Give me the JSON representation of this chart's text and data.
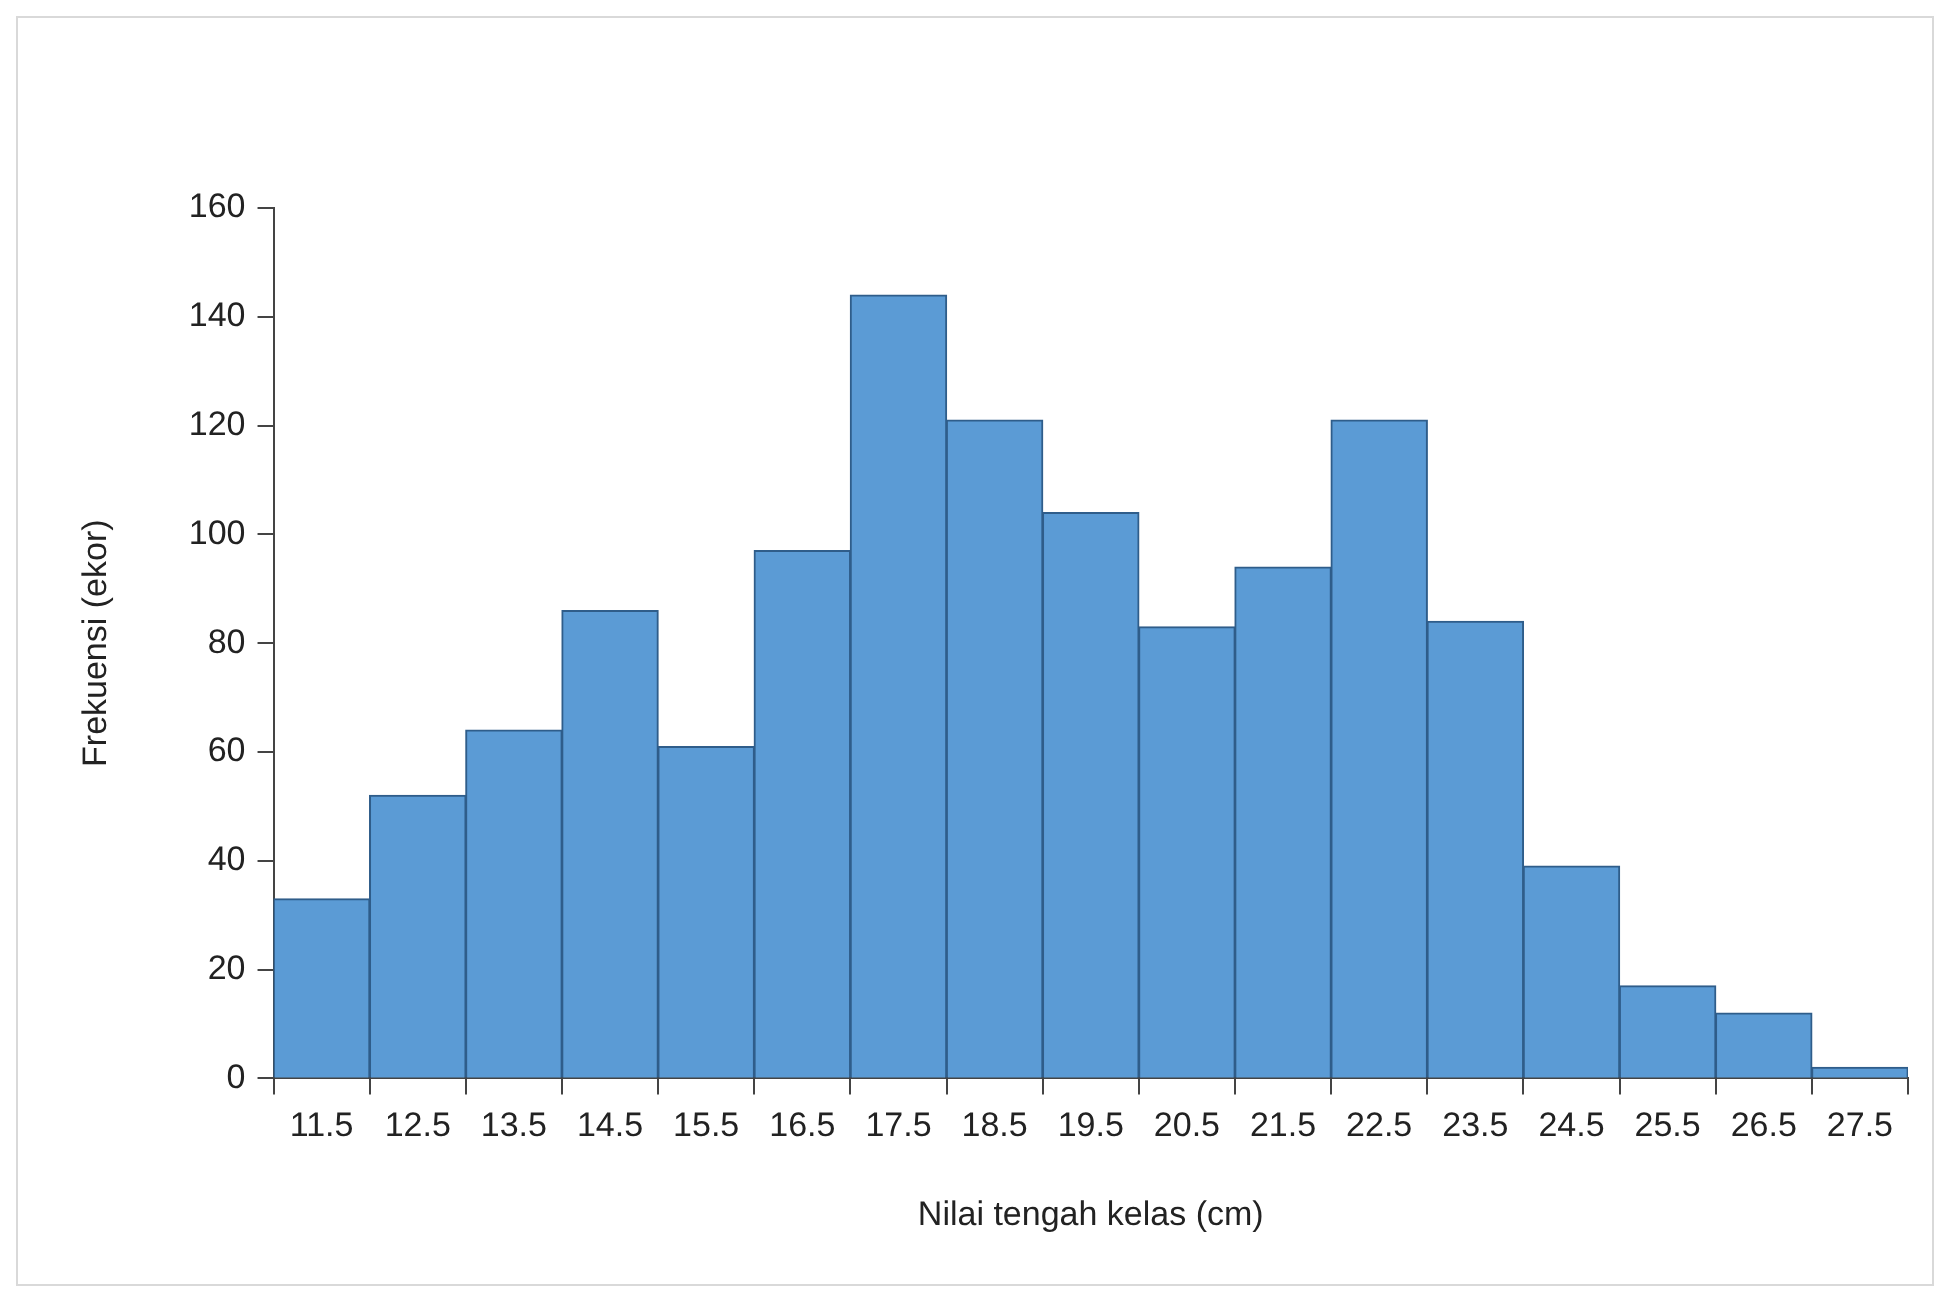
{
  "chart_data": {
    "type": "bar",
    "xlabel": "Nilai tengah kelas (cm)",
    "ylabel": "Frekuensi (ekor)",
    "categories": [
      "11.5",
      "12.5",
      "13.5",
      "14.5",
      "15.5",
      "16.5",
      "17.5",
      "18.5",
      "19.5",
      "20.5",
      "21.5",
      "22.5",
      "23.5",
      "24.5",
      "25.5",
      "26.5",
      "27.5"
    ],
    "values": [
      33,
      52,
      64,
      86,
      61,
      97,
      144,
      121,
      104,
      83,
      94,
      121,
      84,
      39,
      17,
      12,
      2
    ],
    "color": "#5b9bd5",
    "ylim": [
      0,
      160
    ],
    "yticks": [
      0,
      20,
      40,
      60,
      80,
      100,
      120,
      140,
      160
    ],
    "grid": false,
    "legend": false
  }
}
